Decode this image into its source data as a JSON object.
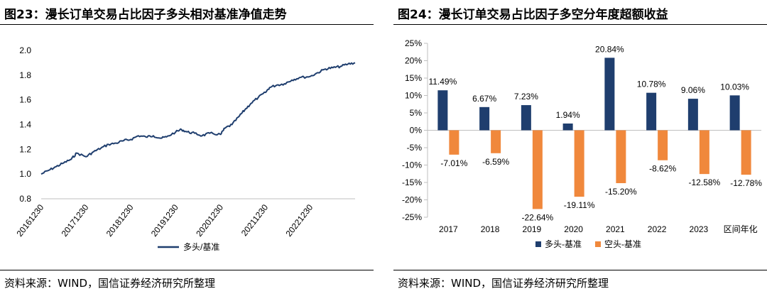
{
  "left": {
    "title": "图23：漫长订单交易占比因子多头相对基准净值走势",
    "source": "资料来源：WIND，国信证券经济研究所整理",
    "chart_data": {
      "type": "line",
      "title": "",
      "ylim": [
        0.8,
        2.0
      ],
      "yticks": [
        "0.8",
        "1.0",
        "1.2",
        "1.4",
        "1.6",
        "1.8",
        "2.0"
      ],
      "xticks": [
        "20161230",
        "20171230",
        "20181230",
        "20191230",
        "20201230",
        "20211230",
        "20221230"
      ],
      "grid": false,
      "legend_position": "bottom",
      "series": [
        {
          "name": "多头/基准",
          "color": "#1f3e6e",
          "points": [
            [
              "2016-12-30",
              1.0
            ],
            [
              "2017-03-01",
              1.03
            ],
            [
              "2017-05-01",
              1.06
            ],
            [
              "2017-07-01",
              1.09
            ],
            [
              "2017-09-01",
              1.12
            ],
            [
              "2017-10-15",
              1.17
            ],
            [
              "2017-12-30",
              1.14
            ],
            [
              "2018-03-01",
              1.18
            ],
            [
              "2018-05-01",
              1.21
            ],
            [
              "2018-07-01",
              1.24
            ],
            [
              "2018-09-01",
              1.25
            ],
            [
              "2018-11-01",
              1.27
            ],
            [
              "2018-12-30",
              1.28
            ],
            [
              "2019-03-01",
              1.31
            ],
            [
              "2019-05-01",
              1.3
            ],
            [
              "2019-07-01",
              1.31
            ],
            [
              "2019-09-01",
              1.29
            ],
            [
              "2019-10-15",
              1.3
            ],
            [
              "2019-12-30",
              1.34
            ],
            [
              "2020-02-15",
              1.36
            ],
            [
              "2020-04-01",
              1.34
            ],
            [
              "2020-06-01",
              1.33
            ],
            [
              "2020-08-01",
              1.31
            ],
            [
              "2020-10-01",
              1.33
            ],
            [
              "2020-12-30",
              1.32
            ],
            [
              "2021-02-01",
              1.37
            ],
            [
              "2021-04-01",
              1.4
            ],
            [
              "2021-06-01",
              1.47
            ],
            [
              "2021-07-15",
              1.52
            ],
            [
              "2021-09-01",
              1.57
            ],
            [
              "2021-11-01",
              1.62
            ],
            [
              "2021-12-30",
              1.66
            ],
            [
              "2022-02-01",
              1.7
            ],
            [
              "2022-04-01",
              1.72
            ],
            [
              "2022-06-01",
              1.73
            ],
            [
              "2022-08-01",
              1.76
            ],
            [
              "2022-10-01",
              1.78
            ],
            [
              "2022-12-30",
              1.79
            ],
            [
              "2023-03-01",
              1.82
            ],
            [
              "2023-05-01",
              1.85
            ],
            [
              "2023-07-01",
              1.86
            ],
            [
              "2023-09-01",
              1.87
            ],
            [
              "2023-11-01",
              1.89
            ],
            [
              "2023-12-29",
              1.9
            ]
          ]
        }
      ]
    }
  },
  "right": {
    "title": "图24：漫长订单交易占比因子多空分年度超额收益",
    "source": "资料来源：WIND，国信证券经济研究所整理",
    "chart_data": {
      "type": "bar",
      "title": "",
      "categories": [
        "2017",
        "2018",
        "2019",
        "2020",
        "2021",
        "2022",
        "2023",
        "区间年化"
      ],
      "ylim": [
        -25,
        25
      ],
      "yticks": [
        "-25%",
        "-20%",
        "-15%",
        "-10%",
        "-5%",
        "0%",
        "5%",
        "10%",
        "15%",
        "20%",
        "25%"
      ],
      "grid": false,
      "legend_position": "bottom",
      "series": [
        {
          "name": "多头-基准",
          "color": "#1f3e6e",
          "values": [
            11.49,
            6.67,
            7.23,
            1.94,
            20.84,
            10.78,
            9.06,
            10.03
          ],
          "labels": [
            "11.49%",
            "6.67%",
            "7.23%",
            "1.94%",
            "20.84%",
            "10.78%",
            "9.06%",
            "10.03%"
          ]
        },
        {
          "name": "空头-基准",
          "color": "#f0883c",
          "values": [
            -7.01,
            -6.59,
            -22.64,
            -19.11,
            -15.2,
            -8.62,
            -12.58,
            -12.78
          ],
          "labels": [
            "-7.01%",
            "-6.59%",
            "-22.64%",
            "-19.11%",
            "-15.20%",
            "-8.62%",
            "-12.58%",
            "-12.78%"
          ]
        }
      ]
    }
  }
}
